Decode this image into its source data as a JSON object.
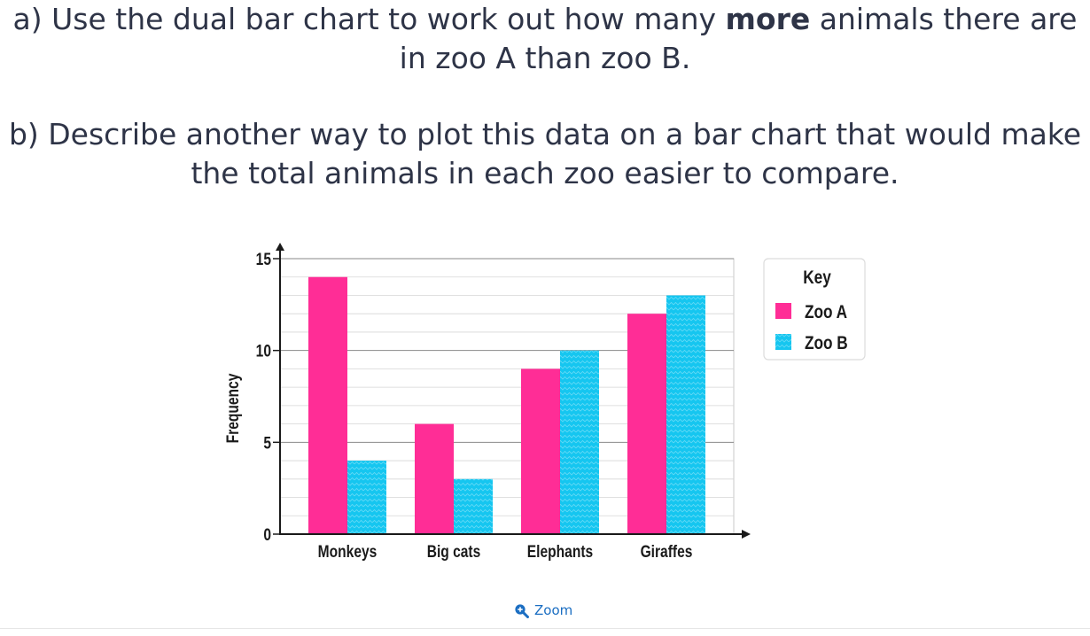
{
  "question": {
    "a_prefix": "a) Use the dual bar chart to work out how many ",
    "a_bold": "more",
    "a_suffix": " animals there are in zoo A than zoo B.",
    "b_text": "b) Describe another way to plot this data on a bar chart that would make the total animals in each zoo easier to compare."
  },
  "chart_data": {
    "type": "bar",
    "categories": [
      "Monkeys",
      "Big cats",
      "Elephants",
      "Giraffes"
    ],
    "series": [
      {
        "name": "Zoo A",
        "values": [
          14,
          6,
          9,
          12
        ],
        "color": "#ff2d96"
      },
      {
        "name": "Zoo B",
        "values": [
          4,
          3,
          10,
          13
        ],
        "color": "#15c6f0"
      }
    ],
    "ylabel": "Frequency",
    "xlabel": "",
    "ylim": [
      0,
      15
    ],
    "yticks": [
      0,
      5,
      10,
      15
    ],
    "grid": true,
    "legend": {
      "title": "Key",
      "position": "right"
    }
  },
  "zoom": {
    "label": "Zoom",
    "icon": "zoom-in-icon"
  }
}
